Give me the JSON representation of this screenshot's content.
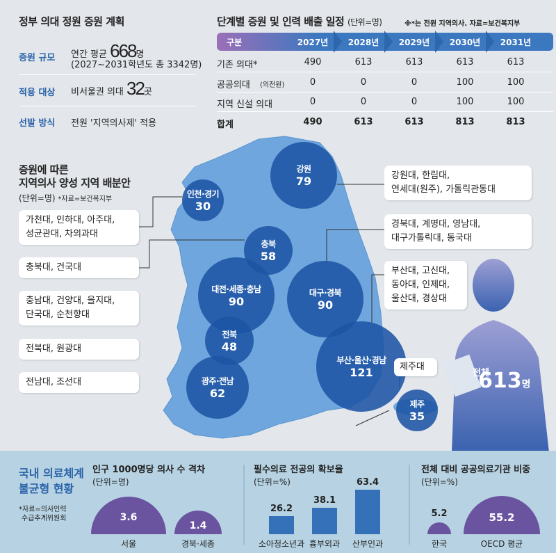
{
  "plan": {
    "title": "정부 의대 정원 증원 계획",
    "rows": [
      {
        "label": "증원 규모",
        "prefix": "연간 평균 ",
        "big": "668",
        "suffix": "명",
        "line2": "(2027~2031학년도 총 3342명)"
      },
      {
        "label": "적용 대상",
        "prefix": "비서울권 의대 ",
        "big": "32",
        "suffix": "곳"
      },
      {
        "label": "선발 방식",
        "prefix": "전원 '지역의사제' 적용"
      }
    ]
  },
  "schedule": {
    "title": "단계별 증원 및 인력 배출 일정",
    "unit": "(단위=명)",
    "note": "※*는 전원 지역의사. 자료=보건복지부",
    "headers": [
      "구분",
      "2027년",
      "2028년",
      "2029년",
      "2030년",
      "2031년"
    ],
    "rows": [
      {
        "label": "기존 의대*",
        "values": [
          "490",
          "613",
          "613",
          "613",
          "613"
        ]
      },
      {
        "label": "공공의대",
        "label_small": "(의전원)",
        "values": [
          "0",
          "0",
          "0",
          "100",
          "100"
        ]
      },
      {
        "label": "지역 신설 의대",
        "values": [
          "0",
          "0",
          "0",
          "100",
          "100"
        ]
      },
      {
        "label": "합계",
        "values": [
          "490",
          "613",
          "613",
          "813",
          "813"
        ]
      }
    ]
  },
  "allocation": {
    "title1": "증원에 따른",
    "title2": "지역의사 양성 지역 배분안",
    "unit": "(단위=명)",
    "source": "*자료=보건복지부",
    "regions": [
      {
        "name": "인천·경기",
        "value": "30",
        "schools": [
          "가천대, 인하대, 아주대,",
          "성균관대, 차의과대"
        ]
      },
      {
        "name": "강원",
        "value": "79",
        "schools": [
          "강원대, 한림대,",
          "연세대(원주), 가톨릭관동대"
        ]
      },
      {
        "name": "충북",
        "value": "58",
        "schools": [
          "충북대, 건국대"
        ]
      },
      {
        "name": "대전·세종·충남",
        "value": "90",
        "schools": [
          "충남대, 건양대, 을지대,",
          "단국대, 순천향대"
        ]
      },
      {
        "name": "대구·경북",
        "value": "90",
        "schools": [
          "경북대, 계명대, 영남대,",
          "대구가톨릭대, 동국대"
        ]
      },
      {
        "name": "전북",
        "value": "48",
        "schools": [
          "전북대, 원광대"
        ]
      },
      {
        "name": "부산·울산·경남",
        "value": "121",
        "schools": [
          "부산대, 고신대,",
          "동아대, 인제대,",
          "울산대, 경상대"
        ]
      },
      {
        "name": "광주·전남",
        "value": "62",
        "schools": [
          "전남대, 조선대"
        ]
      },
      {
        "name": "제주",
        "value": "35",
        "schools": [
          "제주대"
        ]
      }
    ],
    "total_label": "전체",
    "total_value": "613",
    "total_unit": "명"
  },
  "imbalance": {
    "title1": "국내 의료체계",
    "title2": "불균형 현황",
    "source1": "*자료=의사인력",
    "source2": "수급추계위원회"
  },
  "chart_data": [
    {
      "type": "semicircle",
      "title": "인구 1000명당 의사 수 격차",
      "unit": "(단위=명)",
      "categories": [
        "서울",
        "경북·세종"
      ],
      "values": [
        3.6,
        1.4
      ]
    },
    {
      "type": "bar",
      "title": "필수의료 전공의 확보율",
      "unit": "(단위=%)",
      "categories": [
        "소아청소년과",
        "흉부외과",
        "산부인과"
      ],
      "values": [
        26.2,
        38.1,
        63.4
      ]
    },
    {
      "type": "semicircle",
      "title": "전체 대비  공공의료기관 비중",
      "unit": "(단위=%)",
      "categories": [
        "한국",
        "OECD 평균"
      ],
      "values": [
        5.2,
        55.2
      ]
    }
  ],
  "colors": {
    "label_blue": "#2a63a8",
    "circle": "#1e55a5",
    "map": "#6fa6dd",
    "semi": "#6a54a0",
    "bar": "#3571b8"
  }
}
